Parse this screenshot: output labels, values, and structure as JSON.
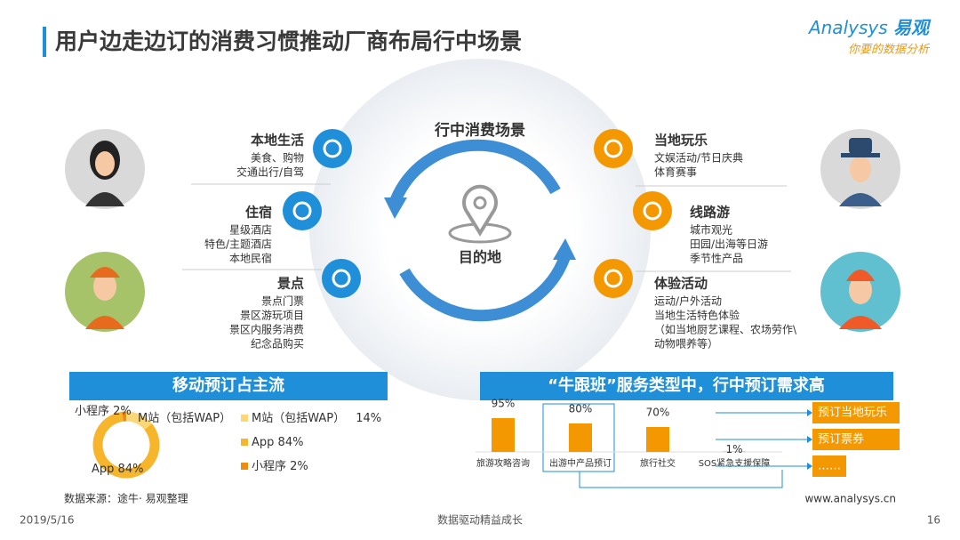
{
  "header": {
    "title": "用户边走边订的消费习惯推动厂商布局行中场景"
  },
  "logo": {
    "brand": "Analysys",
    "brand_cn": "易观",
    "slogan": "你要的数据分析"
  },
  "scene": {
    "title": "行中消费场景",
    "center": "目的地",
    "left": [
      {
        "title": "本地生活",
        "items": [
          "美食、购物",
          "交通出行/自驾"
        ]
      },
      {
        "title": "住宿",
        "items": [
          "星级酒店",
          "特色/主题酒店",
          "本地民宿"
        ]
      },
      {
        "title": "景点",
        "items": [
          "景点门票",
          "景区游玩项目",
          "景区内服务消费",
          "纪念品购买"
        ]
      }
    ],
    "right": [
      {
        "title": "当地玩乐",
        "items": [
          "文娱活动/节日庆典",
          "体育赛事"
        ]
      },
      {
        "title": "线路游",
        "items": [
          "城市观光",
          "田园/出海等日游",
          "季节性产品"
        ]
      },
      {
        "title": "体验活动",
        "items": [
          "运动/户外活动",
          "当地生活特色体验",
          "（如当地厨艺课程、农场劳作\\",
          "动物喂养等）"
        ]
      }
    ]
  },
  "chart_data": [
    {
      "type": "pie",
      "title": "移动预订占主流",
      "donut": true,
      "categories": [
        "M站（包括WAP）",
        "App",
        "小程序"
      ],
      "values": [
        14,
        84,
        2
      ],
      "value_labels": [
        "14%",
        "84%",
        "2%"
      ],
      "colors": [
        "#fcd778",
        "#f7b52c",
        "#ee8c0d"
      ]
    },
    {
      "type": "bar",
      "title": "“牛跟班”服务类型中，行中预订需求高",
      "categories": [
        "旅游攻略咨询",
        "出游中产品预订",
        "旅行社交",
        "SOS紧急支援保障"
      ],
      "values": [
        95,
        80,
        70,
        1
      ],
      "value_labels": [
        "95%",
        "80%",
        "70%",
        "1%"
      ],
      "color": "#f39800"
    }
  ],
  "outcomes": [
    "预订当地玩乐",
    "预订票券",
    "……"
  ],
  "footer": {
    "source": "数据来源：途牛· 易观整理",
    "website": "www.analysys.cn",
    "date": "2019/5/16",
    "slogan": "数据驱动精益成长",
    "page": "16"
  }
}
